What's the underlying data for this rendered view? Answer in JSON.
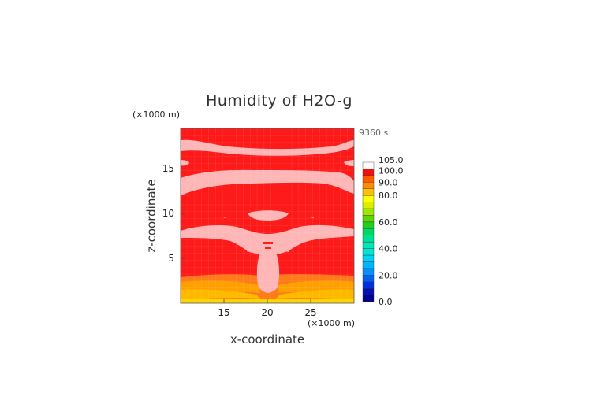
{
  "chart_data": {
    "type": "heatmap",
    "title": "Humidity of H2O-g",
    "xlabel": "x-coordinate",
    "ylabel": "z-coordinate",
    "x_unit": "(×1000 m)",
    "z_unit": "(×1000 m)",
    "time_label": "9360 s",
    "xlim": [
      10,
      30
    ],
    "ylim": [
      0,
      19.5
    ],
    "x_ticks": [
      "15",
      "20",
      "25"
    ],
    "y_ticks": [
      "5",
      "10",
      "15"
    ],
    "x_tick_values": [
      15,
      20,
      25
    ],
    "y_tick_values": [
      5,
      10,
      15
    ],
    "colorbar": {
      "labels": [
        "0.0",
        "20.0",
        "40.0",
        "60.0",
        "80.0",
        "90.0",
        "100.0",
        "105.0"
      ],
      "levels": [
        {
          "from": 0,
          "to": 5,
          "color": "#00008c"
        },
        {
          "from": 5,
          "to": 10,
          "color": "#0010b4"
        },
        {
          "from": 10,
          "to": 15,
          "color": "#0030dc"
        },
        {
          "from": 15,
          "to": 20,
          "color": "#0060f0"
        },
        {
          "from": 20,
          "to": 25,
          "color": "#0090ff"
        },
        {
          "from": 25,
          "to": 30,
          "color": "#00b4ff"
        },
        {
          "from": 30,
          "to": 35,
          "color": "#00d4f0"
        },
        {
          "from": 35,
          "to": 40,
          "color": "#00e4d8"
        },
        {
          "from": 40,
          "to": 45,
          "color": "#00e8b4"
        },
        {
          "from": 45,
          "to": 50,
          "color": "#00e090"
        },
        {
          "from": 50,
          "to": 55,
          "color": "#00d860"
        },
        {
          "from": 55,
          "to": 60,
          "color": "#20d020"
        },
        {
          "from": 60,
          "to": 65,
          "color": "#60d800"
        },
        {
          "from": 65,
          "to": 70,
          "color": "#a0e800"
        },
        {
          "from": 70,
          "to": 75,
          "color": "#d8f000"
        },
        {
          "from": 75,
          "to": 80,
          "color": "#ffff00"
        },
        {
          "from": 80,
          "to": 85,
          "color": "#ffc000"
        },
        {
          "from": 85,
          "to": 90,
          "color": "#ff8c00"
        },
        {
          "from": 90,
          "to": 95,
          "color": "#ff5a00"
        },
        {
          "from": 95,
          "to": 100,
          "color": "#f01010"
        },
        {
          "from": 100,
          "to": 105,
          "color": "#ffffff"
        }
      ]
    },
    "colors": {
      "background_field": "#ff1a1a",
      "saturated_region": "#ffb6b6",
      "lower_band": "#ffa000",
      "surface": "#ffd400"
    }
  }
}
